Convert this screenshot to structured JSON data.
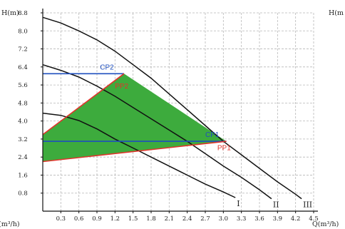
{
  "chart_data": {
    "type": "line",
    "xlabel": "Q(m³/h)",
    "ylabel": "H(m)",
    "ylabel_right": "H(m",
    "xlabel_left": "(m³/h)",
    "xlim": [
      0,
      4.5
    ],
    "ylim": [
      0,
      8.8
    ],
    "x_ticks": [
      "0.3",
      "0.6",
      "0.9",
      "1.2",
      "1.5",
      "1.8",
      "2.1",
      "2.4",
      "2.7",
      "3.0",
      "3.3",
      "3.6",
      "3.9",
      "4.2",
      "4.5"
    ],
    "y_ticks": [
      "0.8",
      "1.6",
      "2.4",
      "3.2",
      "4.0",
      "4.8",
      "5.6",
      "6.4",
      "7.2",
      "8.0",
      "8.8"
    ],
    "grid": true,
    "series": [
      {
        "name": "I",
        "points": [
          [
            0,
            4.35
          ],
          [
            0.3,
            4.25
          ],
          [
            0.6,
            4.02
          ],
          [
            0.9,
            3.65
          ],
          [
            1.2,
            3.2
          ],
          [
            1.5,
            2.8
          ],
          [
            1.8,
            2.4
          ],
          [
            2.1,
            2.0
          ],
          [
            2.4,
            1.6
          ],
          [
            2.7,
            1.2
          ],
          [
            3.0,
            0.85
          ],
          [
            3.2,
            0.6
          ]
        ]
      },
      {
        "name": "II",
        "points": [
          [
            0,
            6.5
          ],
          [
            0.3,
            6.25
          ],
          [
            0.6,
            5.95
          ],
          [
            0.9,
            5.55
          ],
          [
            1.2,
            5.1
          ],
          [
            1.5,
            4.6
          ],
          [
            1.8,
            4.1
          ],
          [
            2.1,
            3.6
          ],
          [
            2.4,
            3.1
          ],
          [
            2.7,
            2.55
          ],
          [
            3.0,
            2.0
          ],
          [
            3.3,
            1.5
          ],
          [
            3.6,
            0.95
          ],
          [
            3.8,
            0.55
          ]
        ]
      },
      {
        "name": "III",
        "points": [
          [
            0,
            8.6
          ],
          [
            0.3,
            8.35
          ],
          [
            0.6,
            8.0
          ],
          [
            0.9,
            7.6
          ],
          [
            1.2,
            7.1
          ],
          [
            1.5,
            6.5
          ],
          [
            1.8,
            5.9
          ],
          [
            2.1,
            5.2
          ],
          [
            2.4,
            4.5
          ],
          [
            2.7,
            3.8
          ],
          [
            3.0,
            3.1
          ],
          [
            3.3,
            2.5
          ],
          [
            3.6,
            1.9
          ],
          [
            3.9,
            1.3
          ],
          [
            4.2,
            0.75
          ],
          [
            4.3,
            0.55
          ]
        ]
      }
    ],
    "curve_labels": [
      "I",
      "II",
      "III"
    ],
    "operating_region": {
      "color": "#3dab3d",
      "points": [
        [
          0,
          3.4
        ],
        [
          1.35,
          6.1
        ],
        [
          3.05,
          3.1
        ],
        [
          0,
          2.2
        ]
      ]
    },
    "modes": [
      {
        "label": "CP2",
        "color": "#1f4fbf",
        "line": [
          [
            0,
            6.1
          ],
          [
            1.35,
            6.1
          ]
        ],
        "label_at": [
          0.95,
          6.28
        ]
      },
      {
        "label": "CP1",
        "color": "#1f4fbf",
        "line": [
          [
            0,
            3.1
          ],
          [
            3.05,
            3.1
          ]
        ],
        "label_at": [
          2.7,
          3.3
        ]
      },
      {
        "label": "PP2",
        "color": "#e0342c",
        "line": [
          [
            0,
            3.4
          ],
          [
            1.35,
            6.1
          ]
        ],
        "label_at": [
          1.2,
          5.45
        ]
      },
      {
        "label": "PP1",
        "color": "#e0342c",
        "line": [
          [
            0,
            2.2
          ],
          [
            3.05,
            3.1
          ]
        ],
        "label_at": [
          2.9,
          2.7
        ]
      }
    ]
  }
}
